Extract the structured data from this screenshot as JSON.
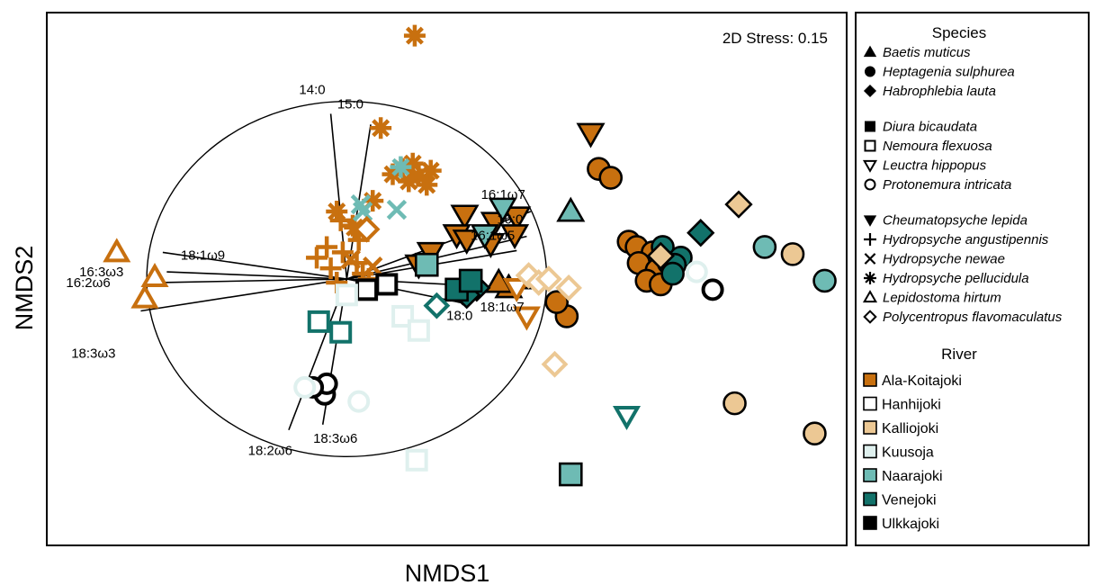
{
  "chart_data": {
    "type": "scatter",
    "title": "",
    "xlabel": "NMDS1",
    "ylabel": "NMDS2",
    "stress_label": "2D Stress: 0.15",
    "xlim": [
      -1.5,
      2.5
    ],
    "ylim": [
      -1.5,
      1.5
    ],
    "vector_circle_radius": 1.0,
    "vectors": [
      {
        "label": "14:0",
        "dx": -0.08,
        "dy": 0.93
      },
      {
        "label": "15:0",
        "dx": 0.12,
        "dy": 0.87
      },
      {
        "label": "16:1ω7",
        "dx": 0.92,
        "dy": 0.38
      },
      {
        "label": "16:0",
        "dx": 0.9,
        "dy": 0.24
      },
      {
        "label": "16:1ω5",
        "dx": 0.85,
        "dy": 0.16
      },
      {
        "label": "18:1ω7",
        "dx": 0.84,
        "dy": -0.05
      },
      {
        "label": "18:0",
        "dx": 0.6,
        "dy": -0.14
      },
      {
        "label": "18:1ω9",
        "dx": -0.92,
        "dy": 0.15
      },
      {
        "label": "16:3ω3",
        "dx": -0.9,
        "dy": 0.04
      },
      {
        "label": "16:2ω6",
        "dx": -0.93,
        "dy": -0.02
      },
      {
        "label": "18:3ω3",
        "dx": -1.03,
        "dy": -0.18
      },
      {
        "label": "18:2ω6",
        "dx": -0.29,
        "dy": -0.85
      },
      {
        "label": "18:3ω6",
        "dx": -0.12,
        "dy": -0.82
      }
    ],
    "species": [
      {
        "name": "Baetis muticus",
        "marker": "triangle-up",
        "fill": true
      },
      {
        "name": "Heptagenia sulphurea",
        "marker": "circle",
        "fill": true
      },
      {
        "name": "Habrophlebia lauta",
        "marker": "diamond",
        "fill": true
      },
      {
        "name": "Diura bicaudata",
        "marker": "square",
        "fill": true
      },
      {
        "name": "Nemoura flexuosa",
        "marker": "square",
        "fill": false
      },
      {
        "name": "Leuctra hippopus",
        "marker": "triangle-down",
        "fill": false
      },
      {
        "name": "Protonemura intricata",
        "marker": "circle",
        "fill": false
      },
      {
        "name": "Cheumatopsyche lepida",
        "marker": "triangle-down",
        "fill": true
      },
      {
        "name": "Hydropsyche angustipennis",
        "marker": "plus",
        "fill": false
      },
      {
        "name": "Hydropsyche newae",
        "marker": "cross",
        "fill": false
      },
      {
        "name": "Hydropsyche pellucidula",
        "marker": "asterisk",
        "fill": false
      },
      {
        "name": "Lepidostoma hirtum",
        "marker": "triangle-up",
        "fill": false
      },
      {
        "name": "Polycentropus flavomaculatus",
        "marker": "diamond",
        "fill": false
      }
    ],
    "rivers": [
      {
        "name": "Ala-Koitajoki",
        "color": "#c8700f"
      },
      {
        "name": "Hanhijoki",
        "color": "#ffffff"
      },
      {
        "name": "Kalliojoki",
        "color": "#ecc894"
      },
      {
        "name": "Kuusoja",
        "color": "#dff0ee"
      },
      {
        "name": "Naarajoki",
        "color": "#6ebbb4"
      },
      {
        "name": "Venejoki",
        "color": "#12726a"
      },
      {
        "name": "Ulkkajoki",
        "color": "#000000"
      }
    ],
    "points": [
      {
        "x": -1.15,
        "y": 0.15,
        "species": 11,
        "river": 0
      },
      {
        "x": -0.96,
        "y": 0.01,
        "species": 11,
        "river": 0
      },
      {
        "x": -1.01,
        "y": -0.11,
        "species": 11,
        "river": 0
      },
      {
        "x": 0.34,
        "y": 1.37,
        "species": 10,
        "river": 0
      },
      {
        "x": 0.17,
        "y": 0.85,
        "species": 10,
        "river": 0
      },
      {
        "x": 0.23,
        "y": 0.59,
        "species": 10,
        "river": 0
      },
      {
        "x": 0.28,
        "y": 0.62,
        "species": 10,
        "river": 0
      },
      {
        "x": 0.33,
        "y": 0.65,
        "species": 10,
        "river": 0
      },
      {
        "x": 0.36,
        "y": 0.58,
        "species": 10,
        "river": 0
      },
      {
        "x": 0.42,
        "y": 0.61,
        "species": 10,
        "river": 0
      },
      {
        "x": 0.4,
        "y": 0.53,
        "species": 10,
        "river": 0
      },
      {
        "x": 0.31,
        "y": 0.55,
        "species": 10,
        "river": 0
      },
      {
        "x": 0.13,
        "y": 0.44,
        "species": 10,
        "river": 0
      },
      {
        "x": -0.05,
        "y": 0.38,
        "species": 10,
        "river": 0
      },
      {
        "x": 0.04,
        "y": 0.29,
        "species": 10,
        "river": 0
      },
      {
        "x": 0.27,
        "y": 0.63,
        "species": 10,
        "river": 4
      },
      {
        "x": -0.03,
        "y": 0.33,
        "species": 8,
        "river": 0
      },
      {
        "x": 0.03,
        "y": 0.3,
        "species": 8,
        "river": 0
      },
      {
        "x": 0.06,
        "y": 0.22,
        "species": 8,
        "river": 0
      },
      {
        "x": -0.15,
        "y": 0.12,
        "species": 8,
        "river": 0
      },
      {
        "x": -0.08,
        "y": 0.06,
        "species": 8,
        "river": 0
      },
      {
        "x": -0.1,
        "y": 0.18,
        "species": 8,
        "river": 0
      },
      {
        "x": -0.02,
        "y": 0.15,
        "species": 8,
        "river": 0
      },
      {
        "x": 0.05,
        "y": 0.09,
        "species": 8,
        "river": 0
      },
      {
        "x": 0.08,
        "y": 0.03,
        "species": 8,
        "river": 0
      },
      {
        "x": 0.11,
        "y": 0.0,
        "species": 8,
        "river": 0
      },
      {
        "x": -0.05,
        "y": -0.02,
        "species": 8,
        "river": 0
      },
      {
        "x": 0.02,
        "y": 0.11,
        "species": 9,
        "river": 0
      },
      {
        "x": 0.13,
        "y": 0.07,
        "species": 9,
        "river": 0
      },
      {
        "x": 0.07,
        "y": 0.42,
        "species": 9,
        "river": 4
      },
      {
        "x": 0.08,
        "y": 0.38,
        "species": 9,
        "river": 4
      },
      {
        "x": 0.25,
        "y": 0.39,
        "species": 9,
        "river": 4
      },
      {
        "x": 1.22,
        "y": 0.82,
        "species": 7,
        "river": 0
      },
      {
        "x": 0.85,
        "y": 0.35,
        "species": 7,
        "river": 0
      },
      {
        "x": 0.59,
        "y": 0.36,
        "species": 7,
        "river": 0
      },
      {
        "x": 0.84,
        "y": 0.25,
        "species": 7,
        "river": 0
      },
      {
        "x": 0.55,
        "y": 0.25,
        "species": 7,
        "river": 0
      },
      {
        "x": 0.6,
        "y": 0.22,
        "species": 7,
        "river": 0
      },
      {
        "x": 0.74,
        "y": 0.32,
        "species": 7,
        "river": 0
      },
      {
        "x": 0.72,
        "y": 0.2,
        "species": 7,
        "river": 0
      },
      {
        "x": 0.42,
        "y": 0.15,
        "species": 7,
        "river": 0
      },
      {
        "x": 0.36,
        "y": 0.08,
        "species": 7,
        "river": 0
      },
      {
        "x": 0.69,
        "y": 0.25,
        "species": 7,
        "river": 4
      },
      {
        "x": 0.78,
        "y": 0.4,
        "species": 7,
        "river": 4
      },
      {
        "x": 0.81,
        "y": -0.05,
        "species": 0,
        "river": 0
      },
      {
        "x": 0.92,
        "y": 0.0,
        "species": 0,
        "river": 0
      },
      {
        "x": 0.76,
        "y": -0.02,
        "species": 0,
        "river": 0
      },
      {
        "x": 1.12,
        "y": 0.38,
        "species": 0,
        "river": 4
      },
      {
        "x": 1.26,
        "y": 0.62,
        "species": 1,
        "river": 0
      },
      {
        "x": 1.32,
        "y": 0.57,
        "species": 1,
        "river": 0
      },
      {
        "x": 1.41,
        "y": 0.21,
        "species": 1,
        "river": 0
      },
      {
        "x": 1.45,
        "y": 0.18,
        "species": 1,
        "river": 0
      },
      {
        "x": 1.53,
        "y": 0.15,
        "species": 1,
        "river": 0
      },
      {
        "x": 1.46,
        "y": 0.09,
        "species": 1,
        "river": 0
      },
      {
        "x": 1.55,
        "y": 0.05,
        "species": 1,
        "river": 0
      },
      {
        "x": 1.5,
        "y": -0.01,
        "species": 1,
        "river": 0
      },
      {
        "x": 1.57,
        "y": -0.03,
        "species": 1,
        "river": 0
      },
      {
        "x": 1.1,
        "y": -0.21,
        "species": 1,
        "river": 0
      },
      {
        "x": 1.05,
        "y": -0.13,
        "species": 1,
        "river": 0
      },
      {
        "x": 1.58,
        "y": 0.18,
        "species": 1,
        "river": 5
      },
      {
        "x": 1.61,
        "y": 0.09,
        "species": 1,
        "river": 5
      },
      {
        "x": 1.67,
        "y": 0.12,
        "species": 1,
        "river": 5
      },
      {
        "x": 1.64,
        "y": 0.08,
        "species": 1,
        "river": 5
      },
      {
        "x": 1.63,
        "y": 0.03,
        "species": 1,
        "river": 5
      },
      {
        "x": 2.09,
        "y": 0.18,
        "species": 1,
        "river": 4
      },
      {
        "x": 2.39,
        "y": -0.01,
        "species": 1,
        "river": 4
      },
      {
        "x": 2.23,
        "y": 0.14,
        "species": 1,
        "river": 2
      },
      {
        "x": 1.94,
        "y": -0.7,
        "species": 1,
        "river": 2
      },
      {
        "x": 2.34,
        "y": -0.87,
        "species": 1,
        "river": 2
      },
      {
        "x": 1.75,
        "y": 0.04,
        "species": 6,
        "river": 3
      },
      {
        "x": 1.83,
        "y": -0.06,
        "species": 6,
        "river": 1
      },
      {
        "x": 1.77,
        "y": 0.26,
        "species": 2,
        "river": 5
      },
      {
        "x": 1.57,
        "y": 0.13,
        "species": 2,
        "river": 2
      },
      {
        "x": 1.96,
        "y": 0.42,
        "species": 2,
        "river": 2
      },
      {
        "x": 0.58,
        "y": -0.07,
        "species": 2,
        "river": 5
      },
      {
        "x": 0.65,
        "y": -0.05,
        "species": 2,
        "river": 5
      },
      {
        "x": 0.6,
        "y": -0.09,
        "species": 2,
        "river": 5
      },
      {
        "x": 0.4,
        "y": 0.08,
        "species": 3,
        "river": 4
      },
      {
        "x": 0.55,
        "y": -0.06,
        "species": 3,
        "river": 5
      },
      {
        "x": 0.62,
        "y": -0.01,
        "species": 3,
        "river": 5
      },
      {
        "x": 1.12,
        "y": -1.1,
        "species": 3,
        "river": 4
      },
      {
        "x": 0.1,
        "y": -0.06,
        "species": 4,
        "river": 1
      },
      {
        "x": 0.2,
        "y": -0.03,
        "species": 4,
        "river": 1
      },
      {
        "x": 0.0,
        "y": -0.09,
        "species": 4,
        "river": 3
      },
      {
        "x": -0.14,
        "y": -0.24,
        "species": 4,
        "river": 5
      },
      {
        "x": -0.03,
        "y": -0.3,
        "species": 4,
        "river": 5
      },
      {
        "x": 0.28,
        "y": -0.21,
        "species": 4,
        "river": 3
      },
      {
        "x": 0.36,
        "y": -0.29,
        "species": 4,
        "river": 3
      },
      {
        "x": 0.35,
        "y": -1.02,
        "species": 4,
        "river": 3
      },
      {
        "x": 1.4,
        "y": -0.77,
        "species": 5,
        "river": 5
      },
      {
        "x": 0.9,
        "y": -0.21,
        "species": 5,
        "river": 0
      },
      {
        "x": 0.85,
        "y": -0.05,
        "species": 5,
        "river": 0
      },
      {
        "x": 0.1,
        "y": 0.28,
        "species": 12,
        "river": 0
      },
      {
        "x": 0.91,
        "y": 0.02,
        "species": 12,
        "river": 2
      },
      {
        "x": 0.96,
        "y": -0.02,
        "species": 12,
        "river": 2
      },
      {
        "x": 1.01,
        "y": 0.0,
        "species": 12,
        "river": 2
      },
      {
        "x": 1.11,
        "y": -0.05,
        "species": 12,
        "river": 2
      },
      {
        "x": 1.04,
        "y": -0.48,
        "species": 12,
        "river": 2
      },
      {
        "x": 0.45,
        "y": -0.15,
        "species": 12,
        "river": 5
      },
      {
        "x": 0.06,
        "y": -0.69,
        "species": 6,
        "river": 3
      },
      {
        "x": -0.11,
        "y": -0.65,
        "species": 6,
        "river": 6
      },
      {
        "x": -0.1,
        "y": -0.59,
        "species": 6,
        "river": 6
      },
      {
        "x": -0.17,
        "y": -0.61,
        "species": 6,
        "river": 6
      },
      {
        "x": -0.21,
        "y": -0.61,
        "species": 6,
        "river": 3
      }
    ],
    "legend_species_title": "Species",
    "legend_river_title": "River",
    "legend_placement": "right",
    "grid": false
  }
}
